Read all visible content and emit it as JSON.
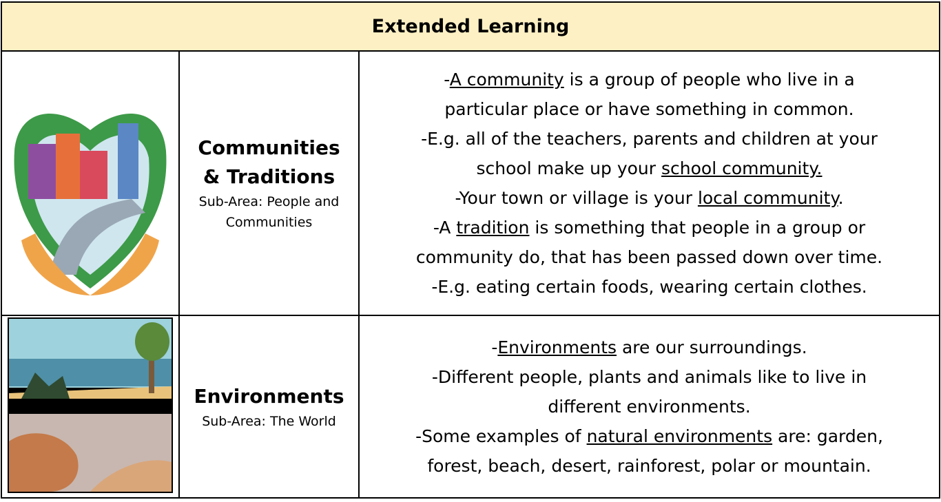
{
  "header": {
    "title": "Extended Learning"
  },
  "rows": [
    {
      "topic": "Communities & Traditions",
      "subarea": "Sub-Area: People and Communities",
      "lines": [
        [
          "-",
          {
            "text": "A community",
            "underline": true
          },
          " is a group of people who live in a"
        ],
        [
          "particular place or have something in common."
        ],
        [
          "-E.g. all of the teachers, parents and children at your"
        ],
        [
          "school make up your ",
          {
            "text": "school community.",
            "underline": true
          }
        ],
        [
          "-Your town or village is your ",
          {
            "text": "local community",
            "underline": true
          },
          "."
        ],
        [
          "-A ",
          {
            "text": "tradition",
            "underline": true
          },
          " is something that people in a group or"
        ],
        [
          "community do, that has been passed down over time."
        ],
        [
          "-E.g. eating certain foods, wearing certain clothes."
        ]
      ]
    },
    {
      "topic": "Environments",
      "subarea": "Sub-Area: The World",
      "lines": [
        [
          "-",
          {
            "text": "Environments",
            "underline": true
          },
          " are our surroundings."
        ],
        [
          "-Different people, plants and animals like to live in"
        ],
        [
          "different environments."
        ],
        [
          "-Some examples of ",
          {
            "text": "natural environments",
            "underline": true
          },
          " are: garden,"
        ],
        [
          "forest, beach, desert, rainforest, polar or mountain."
        ]
      ]
    }
  ]
}
